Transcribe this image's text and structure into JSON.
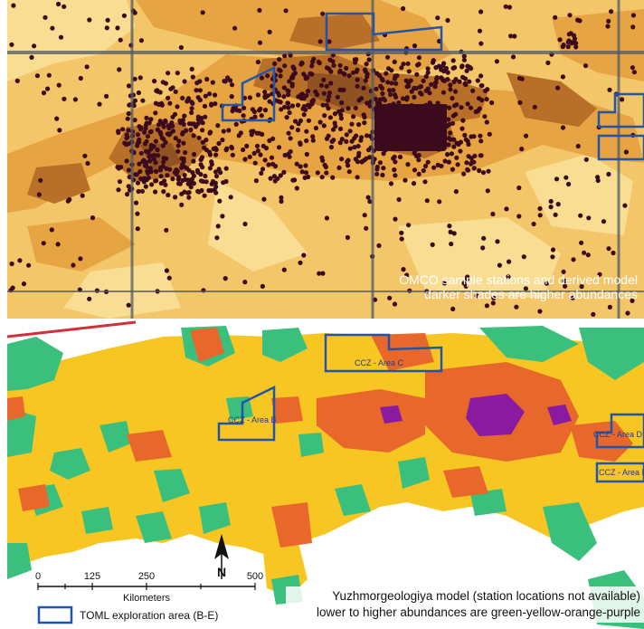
{
  "top_panel": {
    "caption_line1": "OMCO sample stations and derived model",
    "caption_line2": "darker shades are higher abundances"
  },
  "bottom_panel": {
    "area_labels": {
      "area_c": "CCZ - Area C",
      "area_b": "CCZ - Area B",
      "area_d": "CCZ - Area D",
      "area_e": "CCZ - Area E"
    },
    "caption_line1": "Yuzhmorgeologiya model (station locations not available)",
    "caption_line2": "lower to higher abundances are green-yellow-orange-purple"
  },
  "scale_bar": {
    "ticks": [
      "0",
      "125",
      "250",
      "500"
    ],
    "unit": "Kilometers"
  },
  "north_arrow": {
    "label": "N",
    "icon": "north-arrow-icon"
  },
  "legend": {
    "label": "TOML exploration area (B-E)"
  },
  "colors": {
    "top_light": "#f5c76b",
    "top_mid": "#e9a845",
    "top_dark": "#b9712a",
    "dots": "#3b0a1c",
    "boundary": "#2255a8",
    "green": "#3bbf7c",
    "yellow": "#f7c623",
    "orange": "#e8672b",
    "purple": "#8a1aa0"
  }
}
